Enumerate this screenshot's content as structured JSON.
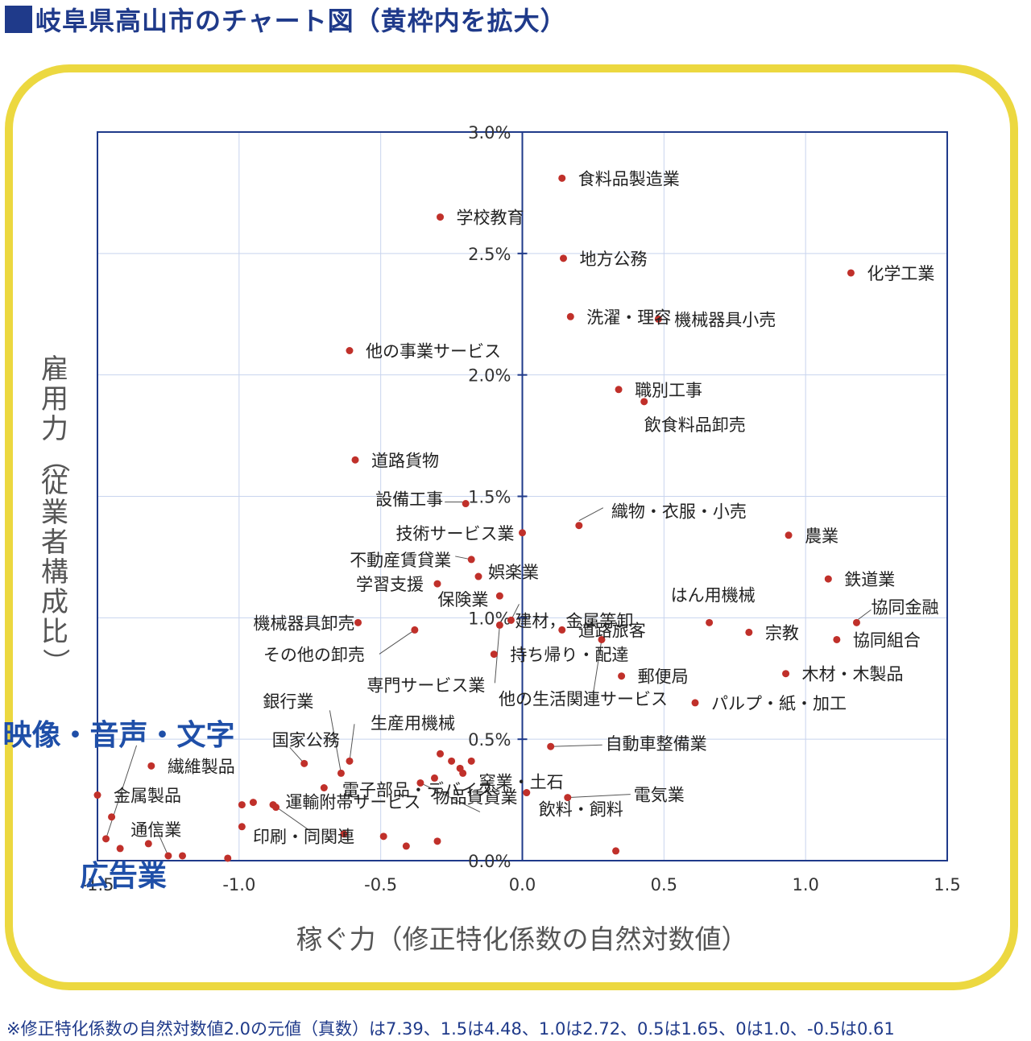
{
  "title": "岐阜県高山市のチャート図（黄枠内を拡大）",
  "footnote": "※修正特化係数の自然対数値2.0の元値（真数）は7.39、1.5は4.48、1.0は2.72、0.5は1.65、0は1.0、-0.5は0.61",
  "colors": {
    "title": "#1f3a8a",
    "frame": "#ecd840",
    "axis": "#1f3a8a",
    "point": "#c0302a",
    "grid": "#c8d4ee",
    "highlight": "#1f4fa8"
  },
  "chart_data": {
    "type": "scatter",
    "xlabel": "稼ぐ力（修正特化係数の自然対数値）",
    "ylabel": "雇用力（従業者構成比）",
    "xlim": [
      -1.5,
      1.5
    ],
    "ylim": [
      0.0,
      3.0
    ],
    "x_ticks": [
      -1.5,
      -1.0,
      -0.5,
      0.0,
      0.5,
      1.0,
      1.5
    ],
    "x_tick_labels": [
      "-1.5",
      "-1.0",
      "-0.5",
      "0.0",
      "0.5",
      "1.0",
      "1.5"
    ],
    "y_ticks": [
      0.0,
      0.5,
      1.0,
      1.5,
      2.0,
      2.5,
      3.0
    ],
    "y_tick_labels": [
      "0.0%",
      "0.5%",
      "1.0%",
      "1.5%",
      "2.0%",
      "2.5%",
      "3.0%"
    ],
    "grid": true,
    "labeled_points": [
      {
        "label": "食料品製造業",
        "x": 0.14,
        "y": 2.81
      },
      {
        "label": "学校教育",
        "x": -0.29,
        "y": 2.65
      },
      {
        "label": "地方公務",
        "x": 0.145,
        "y": 2.48
      },
      {
        "label": "化学工業",
        "x": 1.16,
        "y": 2.42
      },
      {
        "label": "洗濯・理容",
        "x": 0.17,
        "y": 2.24
      },
      {
        "label": "機械器具小売",
        "x": 0.48,
        "y": 2.23
      },
      {
        "label": "他の事業サービス",
        "x": -0.61,
        "y": 2.1
      },
      {
        "label": "職別工事",
        "x": 0.34,
        "y": 1.94
      },
      {
        "label": "飲食料品卸売",
        "x": 0.43,
        "y": 1.89
      },
      {
        "label": "道路貨物",
        "x": -0.59,
        "y": 1.65
      },
      {
        "label": "設備工事",
        "x": -0.2,
        "y": 1.47
      },
      {
        "label": "技術サービス業",
        "x": 0.0,
        "y": 1.35
      },
      {
        "label": "織物・衣服・小売",
        "x": 0.2,
        "y": 1.38
      },
      {
        "label": "農業",
        "x": 0.94,
        "y": 1.34
      },
      {
        "label": "不動産賃貸業",
        "x": -0.18,
        "y": 1.24
      },
      {
        "label": "娯楽業",
        "x": -0.155,
        "y": 1.17
      },
      {
        "label": "学習支援",
        "x": -0.3,
        "y": 1.14
      },
      {
        "label": "鉄道業",
        "x": 1.08,
        "y": 1.16
      },
      {
        "label": "保険業",
        "x": -0.08,
        "y": 1.09
      },
      {
        "label": "建材，金属等卸",
        "x": -0.04,
        "y": 0.99
      },
      {
        "label": "はん用機械",
        "x": 0.66,
        "y": 0.98
      },
      {
        "label": "協同金融",
        "x": 1.18,
        "y": 0.98
      },
      {
        "label": "機械器具卸売",
        "x": -0.58,
        "y": 0.98
      },
      {
        "label": "その他の卸売",
        "x": -0.38,
        "y": 0.95
      },
      {
        "label": "道路旅客",
        "x": 0.14,
        "y": 0.95
      },
      {
        "label": "宗教",
        "x": 0.8,
        "y": 0.94
      },
      {
        "label": "持ち帰り・配達",
        "x": -0.1,
        "y": 0.85
      },
      {
        "label": "協同組合",
        "x": 1.11,
        "y": 0.91
      },
      {
        "label": "専門サービス業",
        "x": -0.08,
        "y": 0.97
      },
      {
        "label": "他の生活関連サービス",
        "x": 0.28,
        "y": 0.91
      },
      {
        "label": "郵便局",
        "x": 0.35,
        "y": 0.76
      },
      {
        "label": "木材・木製品",
        "x": 0.93,
        "y": 0.77
      },
      {
        "label": "パルプ・紙・加工",
        "x": 0.61,
        "y": 0.65
      },
      {
        "label": "銀行業",
        "x": -0.64,
        "y": 0.36
      },
      {
        "label": "生産用機械",
        "x": -0.61,
        "y": 0.41
      },
      {
        "label": "国家公務",
        "x": -0.77,
        "y": 0.4
      },
      {
        "label": "繊維製品",
        "x": -1.31,
        "y": 0.39
      },
      {
        "label": "自動車整備業",
        "x": 0.1,
        "y": 0.47
      },
      {
        "label": "窯業・土石",
        "x": -0.21,
        "y": 0.36
      },
      {
        "label": "電子部品・デバイス",
        "x": -0.36,
        "y": 0.32
      },
      {
        "label": "運輸附帯サービス",
        "x": -0.95,
        "y": 0.24
      },
      {
        "label": "金属製品",
        "x": -1.5,
        "y": 0.27
      },
      {
        "label": "電気業",
        "x": 0.16,
        "y": 0.26
      },
      {
        "label": "飲料・飼料",
        "x": 0.015,
        "y": 0.28
      },
      {
        "label": "物品賃貸業",
        "x": -0.31,
        "y": 0.34
      },
      {
        "label": "通信業",
        "x": -1.32,
        "y": 0.07
      },
      {
        "label": "印刷・同関連",
        "x": -0.88,
        "y": 0.23
      },
      {
        "label": "映像・音声・文字",
        "x": -1.47,
        "y": 0.09
      },
      {
        "label": "広告業",
        "x": -1.25,
        "y": 0.02
      }
    ],
    "unlabeled_points": [
      {
        "x": -1.45,
        "y": 0.18
      },
      {
        "x": -1.42,
        "y": 0.05
      },
      {
        "x": -1.2,
        "y": 0.02
      },
      {
        "x": -1.04,
        "y": 0.01
      },
      {
        "x": -0.99,
        "y": 0.23
      },
      {
        "x": -0.99,
        "y": 0.14
      },
      {
        "x": -0.87,
        "y": 0.22
      },
      {
        "x": -0.7,
        "y": 0.3
      },
      {
        "x": -0.63,
        "y": 0.11
      },
      {
        "x": -0.49,
        "y": 0.1
      },
      {
        "x": -0.41,
        "y": 0.06
      },
      {
        "x": -0.3,
        "y": 0.08
      },
      {
        "x": -0.29,
        "y": 0.44
      },
      {
        "x": -0.25,
        "y": 0.41
      },
      {
        "x": -0.18,
        "y": 0.41
      },
      {
        "x": -0.22,
        "y": 0.38
      },
      {
        "x": 0.33,
        "y": 0.04
      }
    ]
  }
}
